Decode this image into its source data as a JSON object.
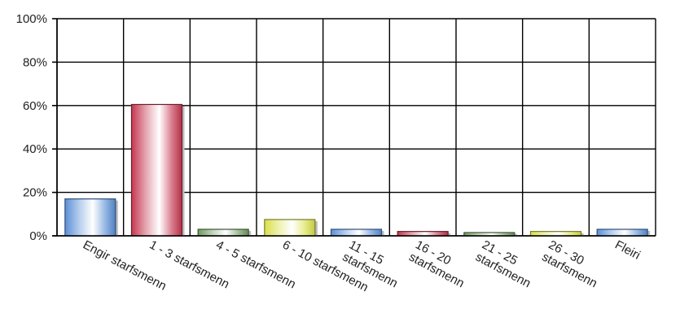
{
  "chart_data": {
    "type": "bar",
    "title": "",
    "xlabel": "",
    "ylabel": "",
    "ylim": [
      0,
      100
    ],
    "y_ticks": [
      0,
      20,
      40,
      60,
      80,
      100
    ],
    "y_tick_format": "{v}%",
    "grid": true,
    "legend": "none",
    "categories": [
      [
        "Engir starfsmenn"
      ],
      [
        "1 - 3 starfsmenn"
      ],
      [
        "4 - 5 starfsmenn"
      ],
      [
        "6 - 10 starfsmenn"
      ],
      [
        "11 - 15",
        "starfsmenn"
      ],
      [
        "16 - 20",
        "starfsmenn"
      ],
      [
        "21 - 25",
        "starfsmenn"
      ],
      [
        "26 - 30",
        "starfsmenn"
      ],
      [
        "Fleiri"
      ]
    ],
    "values": [
      17,
      60.5,
      3,
      7.5,
      3,
      2,
      1.5,
      2,
      3
    ],
    "bar_colors": [
      "#5b8fd6",
      "#c5364f",
      "#6f9960",
      "#d9e04a",
      "#5b8fd6",
      "#c5364f",
      "#6f9960",
      "#d9e04a",
      "#5b8fd6"
    ]
  }
}
